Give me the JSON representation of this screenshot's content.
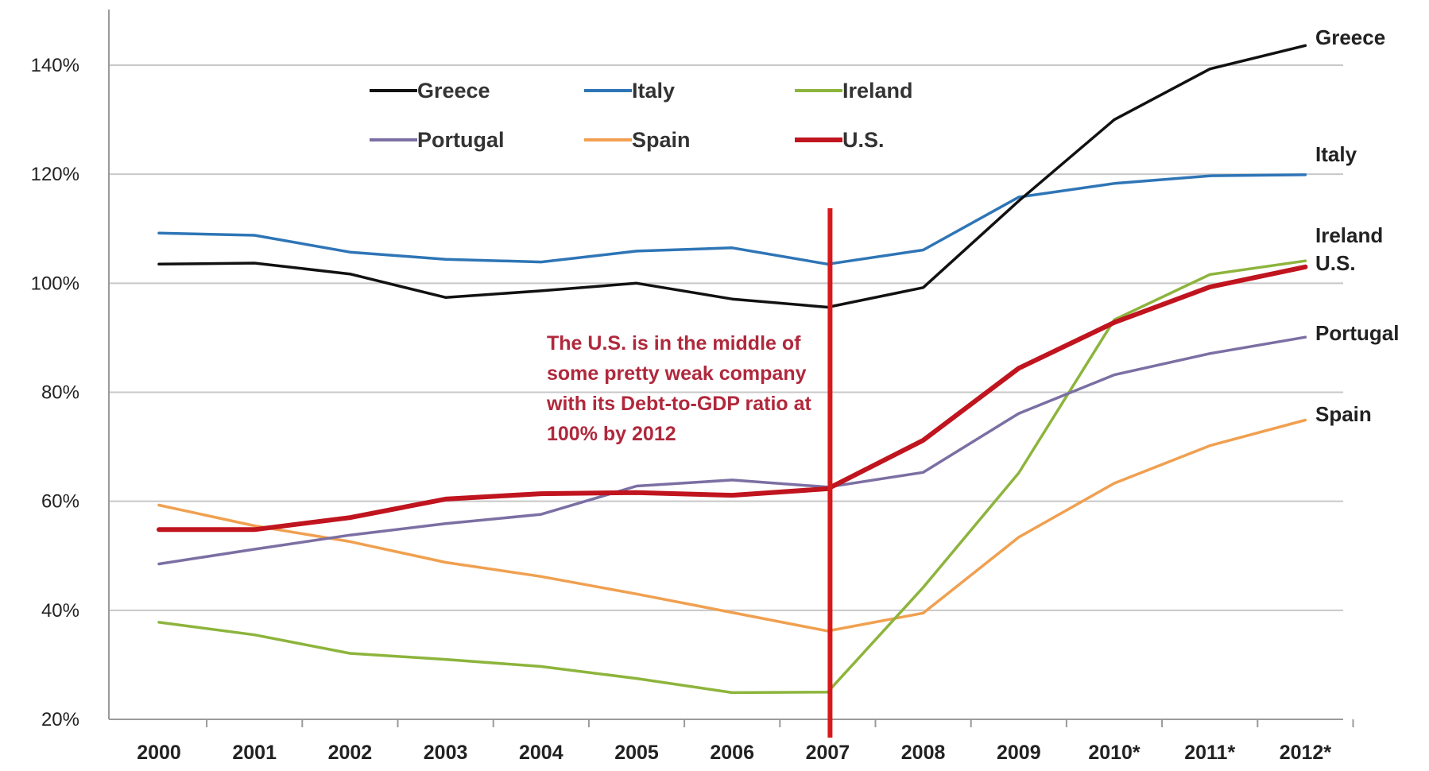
{
  "chart_data": {
    "type": "line",
    "title": "",
    "xlabel": "",
    "ylabel": "",
    "categories": [
      "2000",
      "2001",
      "2002",
      "2003",
      "2004",
      "2005",
      "2006",
      "2007",
      "2008",
      "2009",
      "2010*",
      "2011*",
      "2012*"
    ],
    "ylim": [
      20,
      140
    ],
    "y_ticks": [
      "20%",
      "40%",
      "60%",
      "80%",
      "100%",
      "120%",
      "140%"
    ],
    "grid": true,
    "legend_position": "top-left",
    "series": [
      {
        "name": "Greece",
        "color": "#111111",
        "values": [
          103.5,
          103.7,
          101.7,
          97.4,
          98.6,
          100.0,
          97.1,
          95.6,
          99.2,
          115.1,
          130.0,
          139.3,
          143.6
        ]
      },
      {
        "name": "Italy",
        "color": "#2e75b6",
        "values": [
          109.2,
          108.8,
          105.7,
          104.4,
          103.9,
          105.9,
          106.5,
          103.5,
          106.1,
          115.8,
          118.3,
          119.7,
          119.9
        ]
      },
      {
        "name": "Ireland",
        "color": "#8db43c",
        "values": [
          37.8,
          35.5,
          32.1,
          31.0,
          29.7,
          27.5,
          24.9,
          25.0,
          44.2,
          65.2,
          93.3,
          101.6,
          104.1
        ]
      },
      {
        "name": "Portugal",
        "color": "#7b6fa3",
        "values": [
          48.5,
          51.2,
          53.8,
          55.9,
          57.6,
          62.8,
          63.9,
          62.6,
          65.3,
          76.1,
          83.2,
          87.1,
          90.1
        ]
      },
      {
        "name": "Spain",
        "color": "#f0a050",
        "values": [
          59.3,
          55.5,
          52.6,
          48.8,
          46.2,
          43.0,
          39.6,
          36.2,
          39.5,
          53.4,
          63.3,
          70.2,
          74.9
        ]
      },
      {
        "name": "U.S.",
        "color": "#c0141e",
        "values": [
          54.8,
          54.8,
          57.0,
          60.4,
          61.4,
          61.6,
          61.1,
          62.3,
          71.2,
          84.4,
          92.8,
          99.3,
          103.0
        ]
      }
    ],
    "end_labels": [
      {
        "series": "Greece",
        "text": "Greece"
      },
      {
        "series": "Italy",
        "text": "Italy"
      },
      {
        "series": "Ireland",
        "text": "Ireland"
      },
      {
        "series": "U.S.",
        "text": "U.S."
      },
      {
        "series": "Portugal",
        "text": "Portugal"
      },
      {
        "series": "Spain",
        "text": "Spain"
      }
    ],
    "marker_line": {
      "category": "2007",
      "color": "#d7191c"
    },
    "annotation": {
      "lines": [
        "The U.S. is in the middle of",
        "some pretty weak company",
        "with its Debt-to-GDP ratio at",
        "100% by 2012"
      ],
      "color": "#b0283c"
    }
  }
}
